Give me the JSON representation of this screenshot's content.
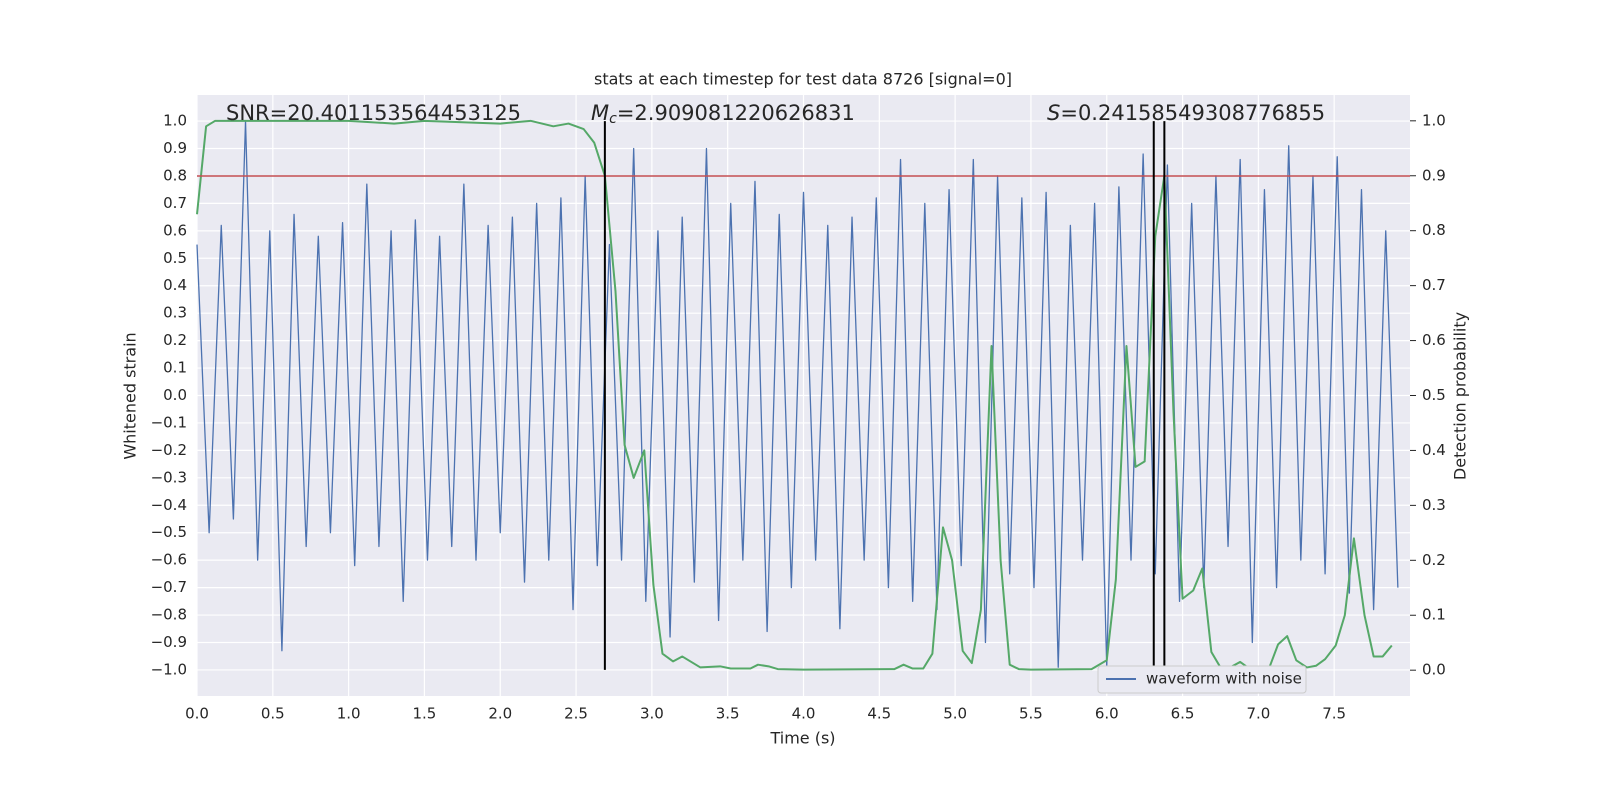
{
  "chart_data": {
    "type": "line",
    "title": "stats at each timestep for test data 8726 [signal=0]",
    "xlabel": "Time (s)",
    "ylabel": "Whitened strain",
    "y2label": "Detection probability",
    "xlim": [
      0,
      8
    ],
    "ylim": [
      -1.095,
      1.095
    ],
    "y2lim": [
      -0.047,
      1.047
    ],
    "xticks": [
      {
        "value": 0,
        "label": "0.0"
      },
      0.5,
      {
        "value": 1,
        "label": "1.0"
      },
      1.5,
      {
        "value": 2,
        "label": "2.0"
      },
      2.5,
      {
        "value": 3,
        "label": "3.0"
      },
      3.5,
      {
        "value": 4,
        "label": "4.0"
      },
      4.5,
      {
        "value": 5,
        "label": "5.0"
      },
      5.5,
      {
        "value": 6,
        "label": "6.0"
      },
      6.5,
      {
        "value": 7,
        "label": "7.0"
      },
      7.5
    ],
    "yticks": [
      {
        "value": -1,
        "label": "−1.0"
      },
      {
        "value": -0.9,
        "label": "−0.9"
      },
      {
        "value": -0.8,
        "label": "−0.8"
      },
      {
        "value": -0.7,
        "label": "−0.7"
      },
      {
        "value": -0.6,
        "label": "−0.6"
      },
      {
        "value": -0.5,
        "label": "−0.5"
      },
      {
        "value": -0.4,
        "label": "−0.4"
      },
      {
        "value": -0.3,
        "label": "−0.3"
      },
      {
        "value": -0.2,
        "label": "−0.2"
      },
      {
        "value": -0.1,
        "label": "−0.1"
      },
      {
        "value": 0,
        "label": "0.0"
      },
      0.1,
      0.2,
      0.3,
      0.4,
      0.5,
      0.6,
      0.7,
      0.8,
      0.9,
      {
        "value": 1,
        "label": "1.0"
      }
    ],
    "y2ticks": [
      {
        "value": 0,
        "label": "0.0"
      },
      0.1,
      0.2,
      0.3,
      0.4,
      0.5,
      0.6,
      0.7,
      0.8,
      0.9,
      {
        "value": 1,
        "label": "1.0"
      }
    ],
    "grid": true,
    "legend": "lower right",
    "series": [
      {
        "name": "waveform with noise",
        "color": "#4c72b0",
        "x": [
          0,
          0.08,
          0.16,
          0.24,
          0.32,
          0.4,
          0.48,
          0.56,
          0.64,
          0.72,
          0.8,
          0.88,
          0.96,
          1.04,
          1.12,
          1.2,
          1.28,
          1.36,
          1.44,
          1.52,
          1.6,
          1.68,
          1.76,
          1.84,
          1.92,
          2,
          2.08,
          2.16,
          2.24,
          2.32,
          2.4,
          2.48,
          2.56,
          2.64,
          2.72,
          2.8,
          2.88,
          2.96,
          3.04,
          3.12,
          3.2,
          3.28,
          3.36,
          3.44,
          3.52,
          3.6,
          3.68,
          3.76,
          3.84,
          3.92,
          4,
          4.08,
          4.16,
          4.24,
          4.32,
          4.4,
          4.48,
          4.56,
          4.64,
          4.72,
          4.8,
          4.88,
          4.96,
          5.04,
          5.12,
          5.2,
          5.28,
          5.36,
          5.44,
          5.52,
          5.6,
          5.68,
          5.76,
          5.84,
          5.92,
          6,
          6.08,
          6.16,
          6.24,
          6.32,
          6.4,
          6.48,
          6.56,
          6.64,
          6.72,
          6.8,
          6.88,
          6.96,
          7.04,
          7.12,
          7.2,
          7.28,
          7.36,
          7.44,
          7.52,
          7.6,
          7.68,
          7.76,
          7.84,
          7.92
        ],
        "values": [
          0.55,
          -0.5,
          0.62,
          -0.45,
          1.0,
          -0.6,
          0.6,
          -0.93,
          0.66,
          -0.55,
          0.58,
          -0.5,
          0.63,
          -0.62,
          0.77,
          -0.55,
          0.6,
          -0.75,
          0.64,
          -0.6,
          0.58,
          -0.55,
          0.77,
          -0.6,
          0.62,
          -0.5,
          0.65,
          -0.68,
          0.7,
          -0.6,
          0.72,
          -0.78,
          0.8,
          -0.62,
          0.55,
          -0.6,
          0.9,
          -0.75,
          0.6,
          -0.88,
          0.65,
          -0.68,
          0.9,
          -0.82,
          0.7,
          -0.6,
          0.78,
          -0.86,
          0.66,
          -0.7,
          0.74,
          -0.6,
          0.62,
          -0.85,
          0.65,
          -0.6,
          0.72,
          -0.7,
          0.86,
          -0.75,
          0.7,
          -0.78,
          0.75,
          -0.62,
          0.86,
          -0.9,
          0.8,
          -0.65,
          0.72,
          -0.7,
          0.74,
          -0.99,
          0.62,
          -0.6,
          0.7,
          -0.99,
          0.76,
          -0.6,
          0.88,
          -0.65,
          0.84,
          -0.75,
          0.7,
          -0.7,
          0.8,
          -0.55,
          0.86,
          -0.9,
          0.75,
          -0.7,
          0.91,
          -0.6,
          0.8,
          -0.65,
          0.87,
          -0.72,
          0.75,
          -0.78,
          0.6,
          -0.7
        ]
      },
      {
        "color": "#55a868",
        "axis": "y2",
        "x": [
          0,
          0.06,
          0.12,
          0.3,
          0.6,
          1.0,
          1.3,
          1.5,
          2.0,
          2.2,
          2.35,
          2.45,
          2.55,
          2.62,
          2.69,
          2.76,
          2.82,
          2.88,
          2.95,
          3.01,
          3.07,
          3.14,
          3.2,
          3.26,
          3.32,
          3.45,
          3.52,
          3.65,
          3.7,
          3.77,
          3.83,
          4.0,
          4.6,
          4.66,
          4.72,
          4.79,
          4.85,
          4.92,
          4.98,
          5.05,
          5.11,
          5.17,
          5.24,
          5.3,
          5.36,
          5.42,
          5.5,
          5.9,
          6.0,
          6.06,
          6.13,
          6.19,
          6.25,
          6.32,
          6.38,
          6.44,
          6.5,
          6.57,
          6.63,
          6.69,
          6.75,
          6.82,
          6.88,
          6.94,
          7.0,
          7.07,
          7.13,
          7.19,
          7.25,
          7.32,
          7.38,
          7.44,
          7.51,
          7.57,
          7.63,
          7.7,
          7.76,
          7.82,
          7.88
        ],
        "values": [
          0.83,
          0.99,
          1.0,
          1.0,
          1.0,
          1.0,
          0.995,
          1.0,
          0.995,
          1.0,
          0.99,
          0.995,
          0.985,
          0.96,
          0.9,
          0.69,
          0.41,
          0.35,
          0.4,
          0.155,
          0.03,
          0.016,
          0.025,
          0.015,
          0.005,
          0.007,
          0.003,
          0.003,
          0.01,
          0.007,
          0.002,
          0.001,
          0.002,
          0.01,
          0.003,
          0.003,
          0.03,
          0.26,
          0.2,
          0.035,
          0.013,
          0.11,
          0.59,
          0.2,
          0.01,
          0.002,
          0.001,
          0.002,
          0.018,
          0.165,
          0.59,
          0.37,
          0.38,
          0.79,
          0.9,
          0.47,
          0.13,
          0.145,
          0.185,
          0.033,
          0.005,
          0.006,
          0.015,
          0.003,
          0.001,
          0.003,
          0.047,
          0.062,
          0.018,
          0.005,
          0.008,
          0.02,
          0.045,
          0.1,
          0.24,
          0.1,
          0.025,
          0.025,
          0.045
        ]
      }
    ],
    "threshold": 0.8,
    "threshold_color": "#c44e52",
    "vlines": [
      2.69,
      6.31,
      6.38
    ],
    "vline_color": "#000000",
    "annotations": [
      {
        "text": "SNR=20.401153564453125"
      },
      {
        "symbol": "M",
        "subscript": "c",
        "text": "=2.909081220626831"
      },
      {
        "symbol": "S",
        "text": "=0.24158549308776855"
      }
    ]
  }
}
